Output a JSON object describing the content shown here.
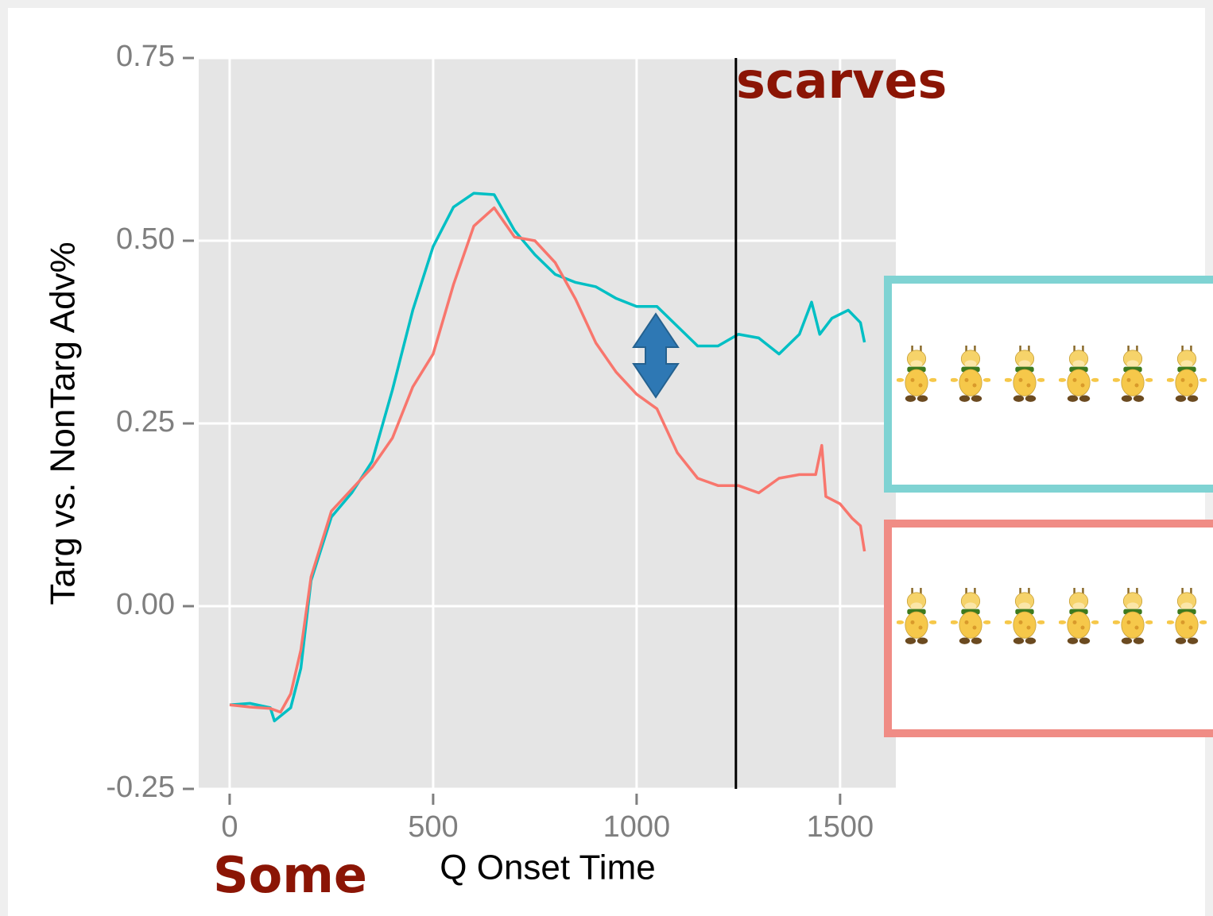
{
  "chart_data": {
    "type": "line",
    "x_label": "Q Onset Time",
    "y_label": "Targ vs. NonTarg Adv%",
    "annotations": [
      "scarves",
      "Some"
    ],
    "vline": 1244,
    "xlim": [
      -76,
      1637
    ],
    "ylim": [
      -0.25,
      0.75
    ],
    "xticks": [
      0,
      500,
      1000,
      1500
    ],
    "yticks": [
      {
        "value": -0.25,
        "label": "-0.25"
      },
      {
        "value": 0,
        "label": "0.00"
      },
      {
        "value": 0.25,
        "label": "0.25"
      },
      {
        "value": 0.5,
        "label": "0.50"
      },
      {
        "value": 0.75,
        "label": "0.75"
      }
    ],
    "grid": true,
    "series": [
      {
        "color": "#00BFC4",
        "x": [
          0,
          50,
          100,
          110,
          150,
          175,
          200,
          250,
          300,
          350,
          400,
          450,
          500,
          550,
          600,
          650,
          700,
          750,
          800,
          850,
          900,
          950,
          1000,
          1050,
          1100,
          1150,
          1200,
          1250,
          1300,
          1350,
          1400,
          1430,
          1450,
          1480,
          1520,
          1550,
          1560
        ],
        "values": [
          -0.135,
          -0.133,
          -0.139,
          -0.157,
          -0.139,
          -0.085,
          0.035,
          0.122,
          0.155,
          0.198,
          0.296,
          0.405,
          0.492,
          0.546,
          0.565,
          0.563,
          0.514,
          0.481,
          0.454,
          0.443,
          0.437,
          0.421,
          0.41,
          0.41,
          0.383,
          0.356,
          0.356,
          0.372,
          0.367,
          0.345,
          0.372,
          0.416,
          0.372,
          0.394,
          0.405,
          0.388,
          0.361
        ]
      },
      {
        "color": "#F8766D",
        "x": [
          0,
          50,
          100,
          125,
          150,
          175,
          200,
          250,
          300,
          350,
          400,
          450,
          500,
          550,
          600,
          650,
          700,
          750,
          800,
          850,
          900,
          950,
          1000,
          1050,
          1100,
          1150,
          1200,
          1250,
          1300,
          1350,
          1400,
          1440,
          1455,
          1465,
          1500,
          1530,
          1550,
          1560
        ],
        "values": [
          -0.135,
          -0.138,
          -0.14,
          -0.145,
          -0.12,
          -0.06,
          0.04,
          0.13,
          0.16,
          0.19,
          0.23,
          0.3,
          0.345,
          0.44,
          0.52,
          0.545,
          0.505,
          0.5,
          0.47,
          0.42,
          0.36,
          0.32,
          0.29,
          0.27,
          0.21,
          0.175,
          0.165,
          0.165,
          0.155,
          0.175,
          0.18,
          0.18,
          0.22,
          0.15,
          0.14,
          0.12,
          0.11,
          0.075
        ]
      }
    ]
  }
}
